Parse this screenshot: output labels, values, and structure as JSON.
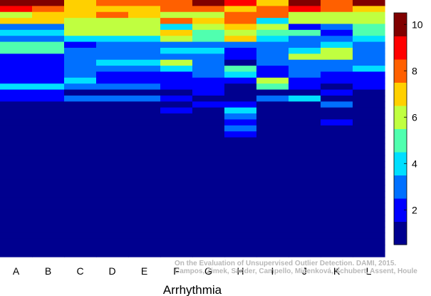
{
  "chart_data": {
    "type": "heatmap",
    "xlabel": "Arrhythmia",
    "categories": [
      "A",
      "B",
      "C",
      "D",
      "E",
      "F",
      "G",
      "H",
      "I",
      "J",
      "K",
      "L"
    ],
    "colorbar": {
      "range": [
        0.5,
        10.5
      ],
      "ticks": [
        2,
        4,
        6,
        8,
        10
      ]
    },
    "colormap": [
      "#00008f",
      "#0000ff",
      "#0070ff",
      "#00dfff",
      "#50ffaf",
      "#c0ff40",
      "#ffd000",
      "#ff6000",
      "#ff0000",
      "#800000"
    ],
    "columns": [
      [
        10,
        9,
        6,
        7,
        3,
        4,
        3,
        5,
        5,
        2,
        2,
        2,
        2,
        2,
        4,
        2,
        2,
        1,
        1,
        1,
        1,
        1,
        1,
        1,
        1,
        1,
        1,
        1,
        1,
        1,
        1,
        1,
        1,
        1,
        1,
        1,
        1,
        1,
        1,
        1,
        1,
        1,
        1
      ],
      [
        10,
        8,
        7,
        7,
        3,
        4,
        3,
        5,
        5,
        2,
        2,
        2,
        2,
        2,
        4,
        2,
        2,
        1,
        1,
        1,
        1,
        1,
        1,
        1,
        1,
        1,
        1,
        1,
        1,
        1,
        1,
        1,
        1,
        1,
        1,
        1,
        1,
        1,
        1,
        1,
        1,
        1,
        1
      ],
      [
        7,
        7,
        7,
        6,
        6,
        6,
        4,
        2,
        3,
        3,
        3,
        3,
        3,
        4,
        3,
        1,
        3,
        1,
        1,
        1,
        1,
        1,
        1,
        1,
        1,
        1,
        1,
        1,
        1,
        1,
        1,
        1,
        1,
        1,
        1,
        1,
        1,
        1,
        1,
        1,
        1,
        1,
        1
      ],
      [
        8,
        7,
        8,
        6,
        6,
        6,
        4,
        3,
        3,
        3,
        4,
        3,
        2,
        2,
        3,
        1,
        3,
        1,
        1,
        1,
        1,
        1,
        1,
        1,
        1,
        1,
        1,
        1,
        1,
        1,
        1,
        1,
        1,
        1,
        1,
        1,
        1,
        1,
        1,
        1,
        1,
        1,
        1
      ],
      [
        8,
        7,
        7,
        6,
        6,
        6,
        4,
        3,
        3,
        3,
        4,
        3,
        2,
        2,
        3,
        1,
        3,
        1,
        1,
        1,
        1,
        1,
        1,
        1,
        1,
        1,
        1,
        1,
        1,
        1,
        1,
        1,
        1,
        1,
        1,
        1,
        1,
        1,
        1,
        1,
        1,
        1,
        1
      ],
      [
        8,
        8,
        6,
        8,
        4,
        7,
        6,
        3,
        4,
        3,
        6,
        4,
        2,
        2,
        2,
        1,
        2,
        1,
        2,
        1,
        1,
        1,
        1,
        1,
        1,
        1,
        1,
        1,
        1,
        1,
        1,
        1,
        1,
        1,
        1,
        1,
        1,
        1,
        1,
        1,
        1,
        1,
        1
      ],
      [
        10,
        8,
        6,
        7,
        6,
        5,
        5,
        3,
        4,
        3,
        3,
        3,
        3,
        2,
        2,
        2,
        1,
        2,
        1,
        1,
        1,
        1,
        1,
        1,
        1,
        1,
        1,
        1,
        1,
        1,
        1,
        1,
        1,
        1,
        1,
        1,
        1,
        1,
        1,
        1,
        1,
        1,
        1
      ],
      [
        9,
        7,
        8,
        8,
        7,
        6,
        7,
        3,
        2,
        2,
        1,
        5,
        4,
        2,
        1,
        1,
        1,
        2,
        4,
        3,
        2,
        3,
        2,
        1,
        1,
        1,
        1,
        1,
        1,
        1,
        1,
        1,
        1,
        1,
        1,
        1,
        1,
        1,
        1,
        1,
        1,
        1,
        1
      ],
      [
        7,
        8,
        8,
        4,
        6,
        5,
        4,
        3,
        3,
        3,
        3,
        2,
        2,
        6,
        5,
        1,
        3,
        1,
        1,
        1,
        1,
        1,
        1,
        1,
        1,
        1,
        1,
        1,
        1,
        1,
        1,
        1,
        1,
        1,
        1,
        1,
        1,
        1,
        1,
        1,
        1,
        1,
        1
      ],
      [
        10,
        9,
        6,
        6,
        2,
        5,
        3,
        3,
        4,
        6,
        3,
        3,
        3,
        2,
        2,
        1,
        4,
        1,
        1,
        1,
        1,
        1,
        1,
        1,
        1,
        1,
        1,
        1,
        1,
        1,
        1,
        1,
        1,
        1,
        1,
        1,
        1,
        1,
        1,
        1,
        1,
        1,
        1
      ],
      [
        8,
        8,
        6,
        6,
        3,
        2,
        3,
        4,
        6,
        6,
        3,
        3,
        2,
        2,
        1,
        2,
        1,
        3,
        1,
        1,
        2,
        1,
        1,
        1,
        1,
        1,
        1,
        1,
        1,
        1,
        1,
        1,
        1,
        1,
        1,
        1,
        1,
        1,
        1,
        1,
        1,
        1,
        1
      ],
      [
        10,
        7,
        6,
        6,
        5,
        5,
        4,
        3,
        3,
        3,
        3,
        4,
        2,
        2,
        2,
        1,
        1,
        1,
        1,
        1,
        1,
        1,
        1,
        1,
        1,
        1,
        1,
        1,
        1,
        1,
        1,
        1,
        1,
        1,
        1,
        1,
        1,
        1,
        1,
        1,
        1,
        1,
        1
      ]
    ]
  },
  "watermark": {
    "line1": "On the Evaluation of Unsupervised Outlier Detection. DAMI, 2015.",
    "line2": "Campos, Zimek, Sander, Campello, Micenková, Schubert, Assent, Houle"
  }
}
